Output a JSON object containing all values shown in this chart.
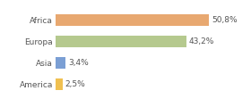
{
  "categories": [
    "America",
    "Asia",
    "Europa",
    "Africa"
  ],
  "values": [
    2.5,
    3.4,
    43.2,
    50.8
  ],
  "bar_colors": [
    "#f0c050",
    "#7b9fd4",
    "#b5c98e",
    "#e8a870"
  ],
  "labels": [
    "2,5%",
    "3,4%",
    "43,2%",
    "50,8%"
  ],
  "xlim": [
    0,
    63
  ],
  "background_color": "#ffffff",
  "text_color": "#555555",
  "label_fontsize": 6.5,
  "tick_fontsize": 6.5,
  "bar_height": 0.55
}
